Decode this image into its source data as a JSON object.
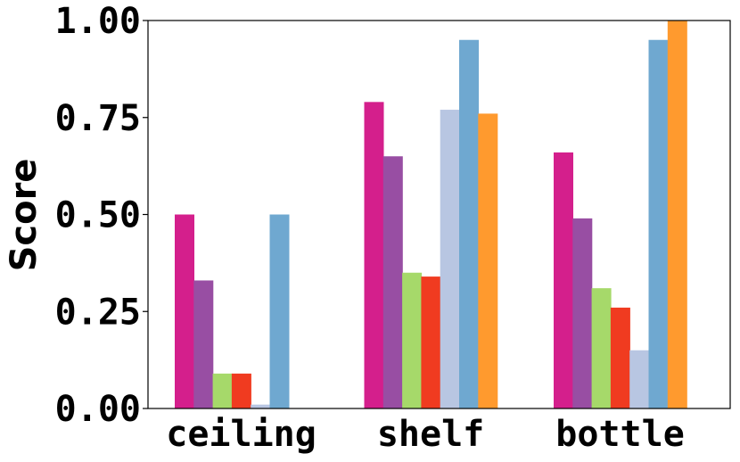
{
  "chart_data": {
    "type": "bar",
    "title": "",
    "xlabel": "",
    "ylabel": "Score",
    "ylim": [
      0,
      1
    ],
    "yticks": [
      "0.00",
      "0.25",
      "0.50",
      "0.75",
      "1.00"
    ],
    "categories": [
      "ceiling",
      "shelf",
      "bottle"
    ],
    "grid": false,
    "legend": "none",
    "series": [
      {
        "color": "#d41f8c",
        "values": [
          0.5,
          0.79,
          0.66
        ]
      },
      {
        "color": "#984ea3",
        "values": [
          0.33,
          0.65,
          0.49
        ]
      },
      {
        "color": "#a6d96a",
        "values": [
          0.09,
          0.35,
          0.31
        ]
      },
      {
        "color": "#f03b20",
        "values": [
          0.09,
          0.34,
          0.26
        ]
      },
      {
        "color": "#b8c6e2",
        "values": [
          0.01,
          0.77,
          0.15
        ]
      },
      {
        "color": "#6fa8d0",
        "values": [
          0.5,
          0.95,
          0.95
        ]
      },
      {
        "color": "#ff9a2e",
        "values": [
          0.0,
          0.76,
          1.0
        ]
      }
    ]
  }
}
